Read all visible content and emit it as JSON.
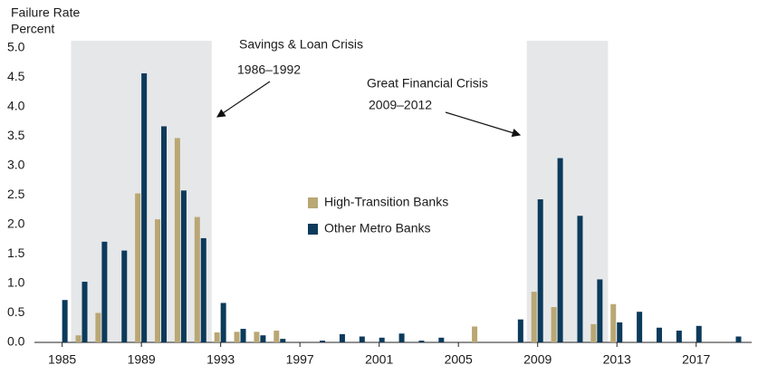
{
  "chart_data": {
    "type": "bar",
    "ylabel": [
      "Failure Rate",
      "Percent"
    ],
    "x": [
      1985,
      1986,
      1987,
      1988,
      1989,
      1990,
      1991,
      1992,
      1993,
      1994,
      1995,
      1996,
      1997,
      1998,
      1999,
      2000,
      2001,
      2002,
      2003,
      2004,
      2005,
      2006,
      2007,
      2008,
      2009,
      2010,
      2011,
      2012,
      2013,
      2014,
      2015,
      2016,
      2017,
      2018,
      2019
    ],
    "series": [
      {
        "name": "High-Transition Banks",
        "color": "#b9a774",
        "values": [
          null,
          0.12,
          0.5,
          null,
          2.53,
          2.09,
          3.47,
          2.13,
          0.17,
          0.18,
          0.18,
          0.2,
          null,
          null,
          null,
          null,
          null,
          null,
          null,
          null,
          null,
          0.27,
          null,
          null,
          0.86,
          0.6,
          null,
          0.31,
          0.65,
          null,
          null,
          null,
          null,
          null,
          null
        ]
      },
      {
        "name": "Other Metro Banks",
        "color": "#0c3a5b",
        "values": [
          0.72,
          1.03,
          1.71,
          1.56,
          4.57,
          3.67,
          2.58,
          1.77,
          0.67,
          0.23,
          0.12,
          0.06,
          null,
          0.03,
          0.14,
          0.1,
          0.08,
          0.15,
          0.03,
          0.08,
          null,
          null,
          null,
          0.39,
          2.43,
          3.13,
          2.15,
          1.07,
          0.34,
          0.52,
          0.25,
          0.2,
          0.28,
          null,
          0.1
        ]
      }
    ],
    "annotations": [
      {
        "text": "Savings & Loan Crisis",
        "period": "1986–1992"
      },
      {
        "text": "Great Financial Crisis",
        "period": "2009–2012"
      }
    ],
    "shade_color": "#e6e7e9",
    "xlim": [
      1983.6,
      2019.8
    ],
    "xticks": [
      1985,
      1989,
      1993,
      1997,
      2001,
      2005,
      2009,
      2013,
      2017
    ],
    "ylim": [
      0,
      5
    ],
    "yticks": [
      {
        "value": 0,
        "label": "0.0"
      },
      0.5,
      {
        "value": 1,
        "label": "1.0"
      },
      1.5,
      {
        "value": 2,
        "label": "2.0"
      },
      2.5,
      {
        "value": 3,
        "label": "3.0"
      },
      3.5,
      {
        "value": 4,
        "label": "4.0"
      },
      4.5,
      {
        "value": 5,
        "label": "5.0"
      }
    ]
  }
}
